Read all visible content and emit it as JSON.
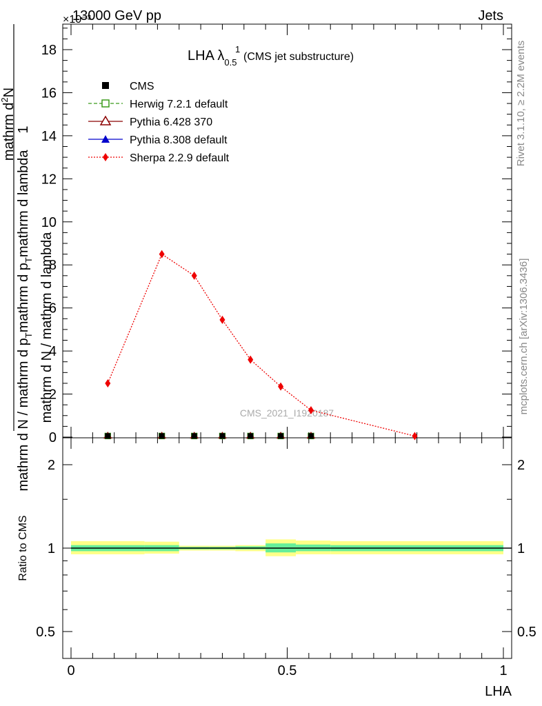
{
  "header": {
    "left": "13000 GeV pp",
    "right": "Jets",
    "multiplier": "×10⁻³"
  },
  "plot_title": {
    "main": "LHA λ",
    "sup": "1",
    "sub": "0.5",
    "suffix": "(CMS jet substructure)"
  },
  "side_labels": {
    "rivet": "Rivet 3.1.10, ≥ 2.2M events",
    "mcplots": "mcplots.cern.ch [arXiv:1306.3436]"
  },
  "watermark": "CMS_2021_I1920187",
  "y_axis_label": {
    "num_1": "1",
    "num_2": "mathrm d",
    "num_sup": "2",
    "num_3": "N",
    "den_1": "mathrm d N / mathrm d p",
    "den_sub": "T",
    "den_2": "mathrm d p",
    "den_sub2": "T",
    "den_3": "mathrm d lambda",
    "den_4": "mathrm d N / mathrm d lambda"
  },
  "ratio_y_label": "Ratio to CMS",
  "x_axis_label": "LHA",
  "legend": [
    {
      "label": "CMS",
      "color": "#000000",
      "marker": "square-filled",
      "line": "none"
    },
    {
      "label": "Herwig 7.2.1 default",
      "color": "#3a9a1a",
      "marker": "square-open",
      "line": "dashed"
    },
    {
      "label": "Pythia 6.428 370",
      "color": "#8b0000",
      "marker": "triangle-open",
      "line": "solid"
    },
    {
      "label": "Pythia 8.308 default",
      "color": "#0000cc",
      "marker": "triangle-filled",
      "line": "solid"
    },
    {
      "label": "Sherpa 2.2.9 default",
      "color": "#ee0000",
      "marker": "diamond-filled",
      "line": "dotted"
    }
  ],
  "chart_data": [
    {
      "type": "scatter",
      "panel": "main",
      "xlabel": "LHA",
      "ylabel": "1 / (mathrm d N / mathrm d p_T) · mathrm d²N / (mathrm d p_T mathrm d lambda)",
      "y_scale_note": "×10⁻³",
      "xlim": [
        0,
        1
      ],
      "ylim": [
        0,
        19.2
      ],
      "yticks": [
        0,
        2,
        4,
        6,
        8,
        10,
        12,
        14,
        16,
        18
      ],
      "xticks": [
        0,
        0.5,
        1
      ],
      "x": [
        0.085,
        0.21,
        0.285,
        0.35,
        0.415,
        0.485,
        0.555,
        0.795
      ],
      "series": [
        {
          "name": "Sherpa 2.2.9 default",
          "values": [
            2.5,
            8.5,
            7.5,
            5.45,
            3.6,
            2.35,
            1.25,
            0.05
          ]
        },
        {
          "name": "CMS",
          "values": [
            0.02,
            0.02,
            0.02,
            0.02,
            0.02,
            0.02,
            0.02,
            null
          ]
        },
        {
          "name": "Herwig 7.2.1 default",
          "values": [
            0.02,
            0.02,
            0.02,
            0.02,
            0.02,
            0.02,
            0.02,
            null
          ]
        },
        {
          "name": "Pythia 6.428 370",
          "values": [
            0.02,
            0.02,
            0.02,
            0.02,
            0.02,
            0.02,
            0.02,
            null
          ]
        },
        {
          "name": "Pythia 8.308 default",
          "values": [
            0.02,
            0.02,
            0.02,
            0.02,
            0.02,
            0.02,
            0.02,
            null
          ]
        }
      ]
    },
    {
      "type": "area",
      "panel": "ratio",
      "ylabel": "Ratio to CMS",
      "xlim": [
        0,
        1
      ],
      "ylim": [
        0.4,
        2.4
      ],
      "y_scale": "log",
      "yticks": [
        0.5,
        1,
        2
      ],
      "bins": [
        {
          "x0": 0.0,
          "x1": 0.17,
          "inner": [
            0.975,
            1.025
          ],
          "outer": [
            0.95,
            1.06
          ]
        },
        {
          "x0": 0.17,
          "x1": 0.25,
          "inner": [
            0.975,
            1.025
          ],
          "outer": [
            0.955,
            1.055
          ]
        },
        {
          "x0": 0.25,
          "x1": 0.32,
          "inner": [
            0.99,
            1.01
          ],
          "outer": [
            0.98,
            1.02
          ]
        },
        {
          "x0": 0.32,
          "x1": 0.38,
          "inner": [
            0.99,
            1.01
          ],
          "outer": [
            0.98,
            1.02
          ]
        },
        {
          "x0": 0.38,
          "x1": 0.45,
          "inner": [
            0.99,
            1.015
          ],
          "outer": [
            0.975,
            1.025
          ]
        },
        {
          "x0": 0.45,
          "x1": 0.52,
          "inner": [
            0.965,
            1.04
          ],
          "outer": [
            0.935,
            1.075
          ]
        },
        {
          "x0": 0.52,
          "x1": 0.6,
          "inner": [
            0.975,
            1.03
          ],
          "outer": [
            0.95,
            1.065
          ]
        },
        {
          "x0": 0.6,
          "x1": 1.0,
          "inner": [
            0.975,
            1.025
          ],
          "outer": [
            0.95,
            1.06
          ]
        }
      ],
      "colors": {
        "inner": "#66ee99",
        "outer": "#ffff88"
      }
    }
  ]
}
